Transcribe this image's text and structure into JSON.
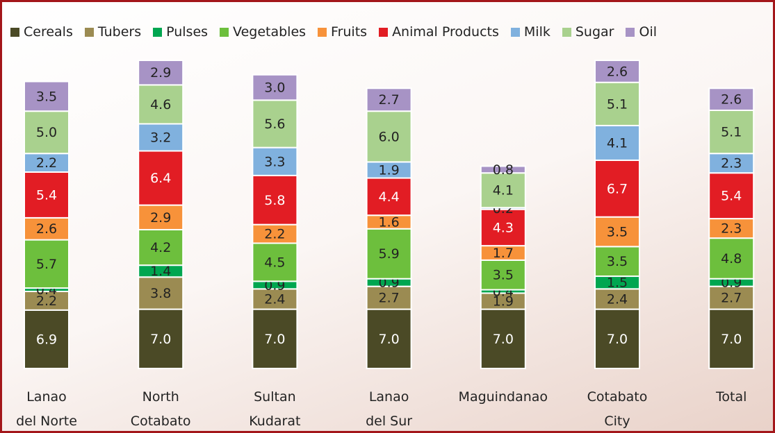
{
  "chart_data": {
    "type": "stacked_bar",
    "categories": [
      "Lanao\ndel Norte",
      "North\nCotabato",
      "Sultan\nKudarat",
      "Lanao\ndel Sur",
      "Maguindanao",
      "Cotabato\nCity",
      "Total"
    ],
    "series": [
      {
        "name": "Cereals",
        "color": "#4b4a26",
        "values": [
          6.9,
          7.0,
          7.0,
          7.0,
          7.0,
          7.0,
          7.0
        ],
        "value_labels": [
          "6.9",
          "7.0",
          "7.0",
          "7.0",
          "7.0",
          "7.0",
          "7.0"
        ]
      },
      {
        "name": "Tubers",
        "color": "#9b8b52",
        "values": [
          2.2,
          3.8,
          2.4,
          2.7,
          1.9,
          2.4,
          2.7
        ],
        "value_labels": [
          "2.2",
          "3.8",
          "2.4",
          "2.7",
          "1.9",
          "2.4",
          "2.7"
        ]
      },
      {
        "name": "Pulses",
        "color": "#00a650",
        "values": [
          0.4,
          1.4,
          0.9,
          0.9,
          0.4,
          1.5,
          0.9
        ],
        "value_labels": [
          "0.4",
          "1.4",
          "0.9",
          "0.9",
          "0.4",
          "1.5",
          "0.9"
        ]
      },
      {
        "name": "Vegetables",
        "color": "#6dbf3d",
        "values": [
          5.7,
          4.2,
          4.5,
          5.9,
          3.5,
          3.5,
          4.8
        ],
        "value_labels": [
          "5.7",
          "4.2",
          "4.5",
          "5.9",
          "3.5",
          "3.5",
          "4.8"
        ]
      },
      {
        "name": "Fruits",
        "color": "#f7923a",
        "values": [
          2.6,
          2.9,
          2.2,
          1.6,
          1.7,
          3.5,
          2.3
        ],
        "value_labels": [
          "2.6",
          "2.9",
          "2.2",
          "1.6",
          "1.7",
          "3.5",
          "2.3"
        ]
      },
      {
        "name": "Animal Products",
        "color": "#e21d24",
        "values": [
          5.4,
          6.4,
          5.8,
          4.4,
          4.3,
          6.7,
          5.4
        ],
        "value_labels": [
          "5.4",
          "6.4",
          "5.8",
          "4.4",
          "4.3",
          "6.7",
          "5.4"
        ]
      },
      {
        "name": "Milk",
        "color": "#80b1de",
        "values": [
          2.2,
          3.2,
          3.3,
          1.9,
          0.2,
          4.1,
          2.3
        ],
        "value_labels": [
          "2.2",
          "3.2",
          "3.3",
          "1.9",
          "0.2",
          "4.1",
          "2.3"
        ]
      },
      {
        "name": "Sugar",
        "color": "#a9d18e",
        "values": [
          5.0,
          4.6,
          5.6,
          6.0,
          4.1,
          5.1,
          5.1
        ],
        "value_labels": [
          "5.0",
          "4.6",
          "5.6",
          "6.0",
          "4.1",
          "5.1",
          "5.1"
        ]
      },
      {
        "name": "Oil",
        "color": "#a793c5",
        "values": [
          3.5,
          2.9,
          3.0,
          2.7,
          0.8,
          2.6,
          2.6
        ],
        "value_labels": [
          "3.5",
          "2.9",
          "3.0",
          "2.7",
          "0.8",
          "2.6",
          "2.6"
        ]
      }
    ]
  }
}
